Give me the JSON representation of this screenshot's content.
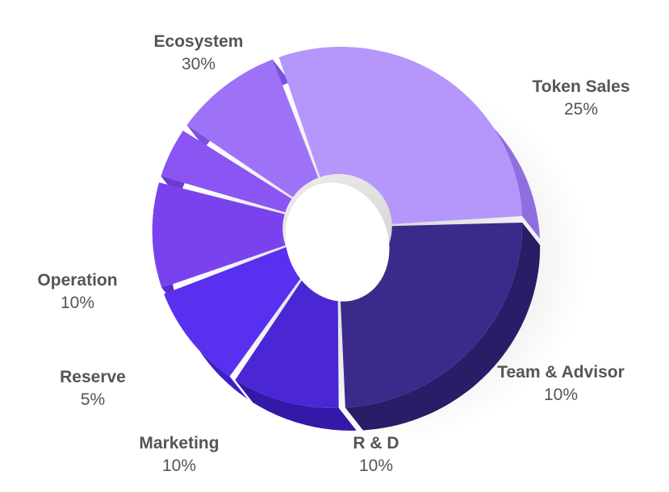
{
  "chart_data": {
    "type": "pie",
    "style": "3d-donut",
    "title": "",
    "legend": "none",
    "categories": [
      "Ecosystem",
      "Token Sales",
      "Team & Advisor",
      "R & D",
      "Marketing",
      "Reserve",
      "Operation"
    ],
    "values": [
      30,
      25,
      10,
      10,
      10,
      5,
      10
    ],
    "value_labels": [
      "30%",
      "25%",
      "10%",
      "10%",
      "10%",
      "5%",
      "10%"
    ],
    "colors": [
      "#b596fb",
      "#3c2a8a",
      "#4a26d4",
      "#5a30f0",
      "#7a42ef",
      "#8a55f2",
      "#9d72f7"
    ],
    "side_colors": [
      "#8f6ee0",
      "#2a1c66",
      "#3418a8",
      "#4020c4",
      "#5a2cc8",
      "#6a3cd0",
      "#7a52da"
    ]
  }
}
